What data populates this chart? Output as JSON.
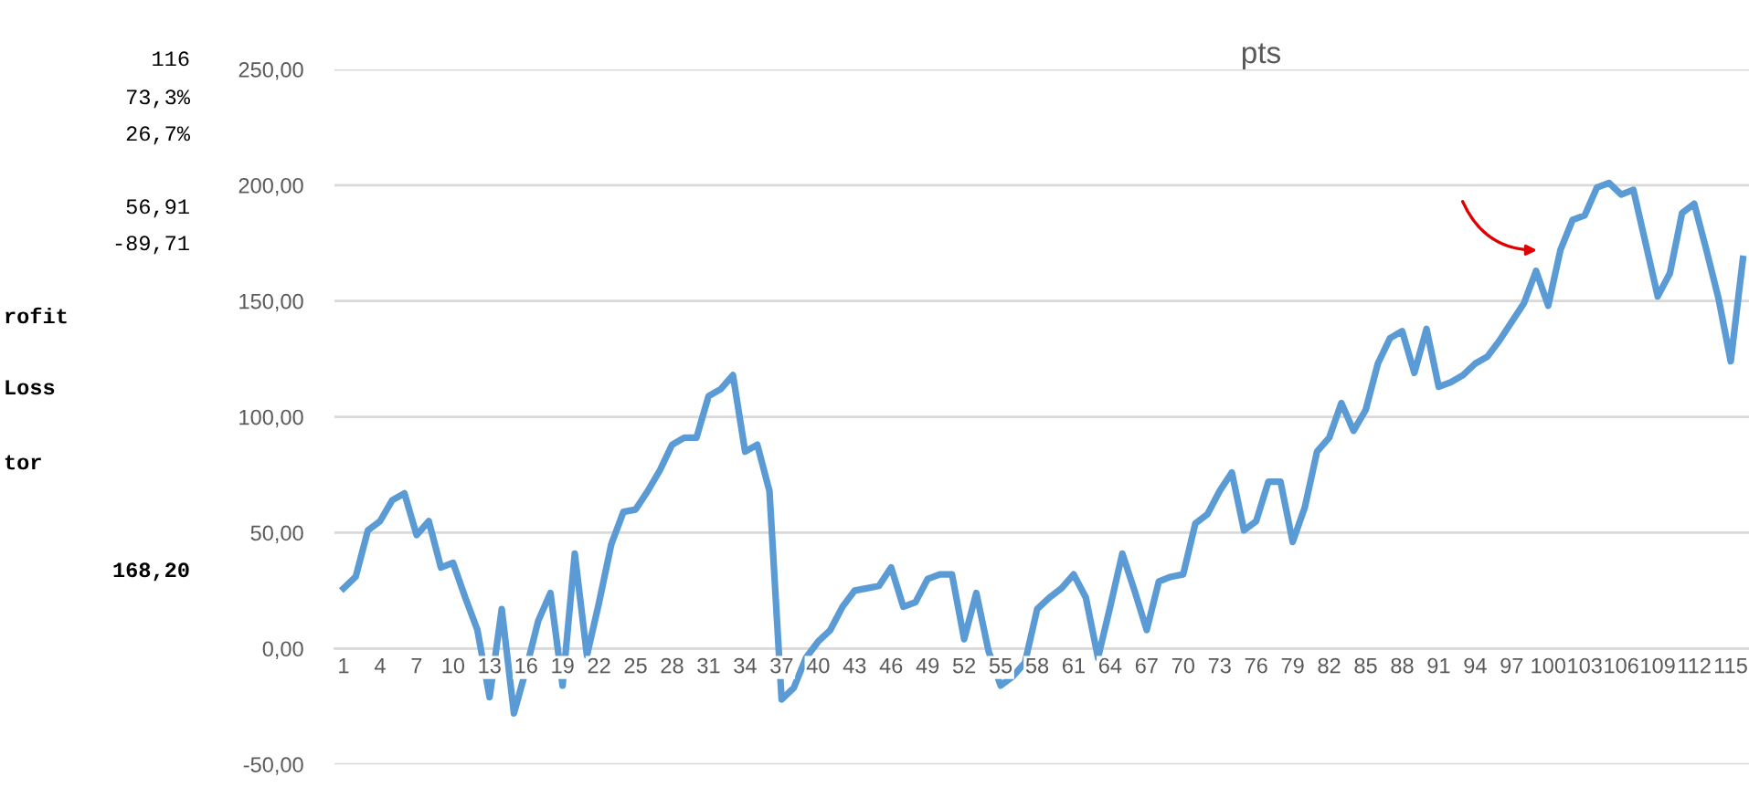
{
  "chart_data": {
    "type": "line",
    "title": "pts",
    "categories": [
      "1",
      null,
      null,
      "4",
      null,
      null,
      "7",
      null,
      null,
      "10",
      null,
      null,
      "13",
      null,
      null,
      "16",
      null,
      null,
      "19",
      null,
      null,
      "22",
      null,
      null,
      "25",
      null,
      null,
      "28",
      null,
      null,
      "31",
      null,
      null,
      "34",
      null,
      null,
      "37",
      null,
      null,
      "40",
      null,
      null,
      "43",
      null,
      null,
      "46",
      null,
      null,
      "49",
      null,
      null,
      "52",
      null,
      null,
      "55",
      null,
      null,
      "58",
      null,
      null,
      "61",
      null,
      null,
      "64",
      null,
      null,
      "67",
      null,
      null,
      "70",
      null,
      null,
      "73",
      null,
      null,
      "76",
      null,
      null,
      "79",
      null,
      null,
      "82",
      null,
      null,
      "85",
      null,
      null,
      "88",
      null,
      null,
      "91",
      null,
      null,
      "94",
      null,
      null,
      "97",
      null,
      null,
      "100",
      null,
      null,
      "103",
      null,
      null,
      "106",
      null,
      null,
      "109",
      null,
      null,
      "112",
      null,
      null,
      "115",
      null
    ],
    "series": [
      {
        "color": "#5b9bd5",
        "values": [
          26,
          31,
          51,
          55,
          64,
          67,
          49,
          55,
          35,
          37,
          22,
          8,
          -21,
          17,
          -28,
          -9,
          12,
          24,
          -16,
          41,
          -3,
          20,
          45,
          59,
          60,
          68,
          77,
          88,
          91,
          91,
          109,
          112,
          118,
          85,
          88,
          68,
          -22,
          -17,
          -4,
          3,
          8,
          18,
          25,
          26,
          27,
          35,
          18,
          20,
          30,
          32,
          32,
          4,
          24,
          -1,
          -16,
          -12,
          -6,
          17,
          22,
          26,
          32,
          22,
          -4,
          18,
          41,
          25,
          8,
          29,
          31,
          32,
          54,
          58,
          68,
          76,
          51,
          55,
          72,
          72,
          46,
          61,
          85,
          91,
          106,
          94,
          103,
          123,
          134,
          137,
          119,
          138,
          113,
          115,
          118,
          123,
          126,
          133,
          141,
          149,
          163,
          148,
          172,
          185,
          187,
          199,
          201,
          196,
          198,
          175,
          152,
          162,
          188,
          192,
          172,
          151,
          124,
          168.2
        ]
      }
    ],
    "ylim": [
      -50,
      250
    ],
    "yticks": [
      {
        "value": -50,
        "label": "-50,00"
      },
      {
        "value": 0,
        "label": "0,00"
      },
      {
        "value": 50,
        "label": "50,00"
      },
      {
        "value": 100,
        "label": "100,00"
      },
      {
        "value": 150,
        "label": "150,00"
      },
      {
        "value": 200,
        "label": "200,00"
      },
      {
        "value": 250,
        "label": "250,00"
      }
    ],
    "grid": "y",
    "legend": false,
    "marker": "none",
    "line_style": "solid",
    "annotations": [
      "116",
      "73,3%",
      "26,7%",
      "56,91",
      "-89,71",
      "rofit",
      "Loss",
      "tor",
      "168,20"
    ]
  }
}
